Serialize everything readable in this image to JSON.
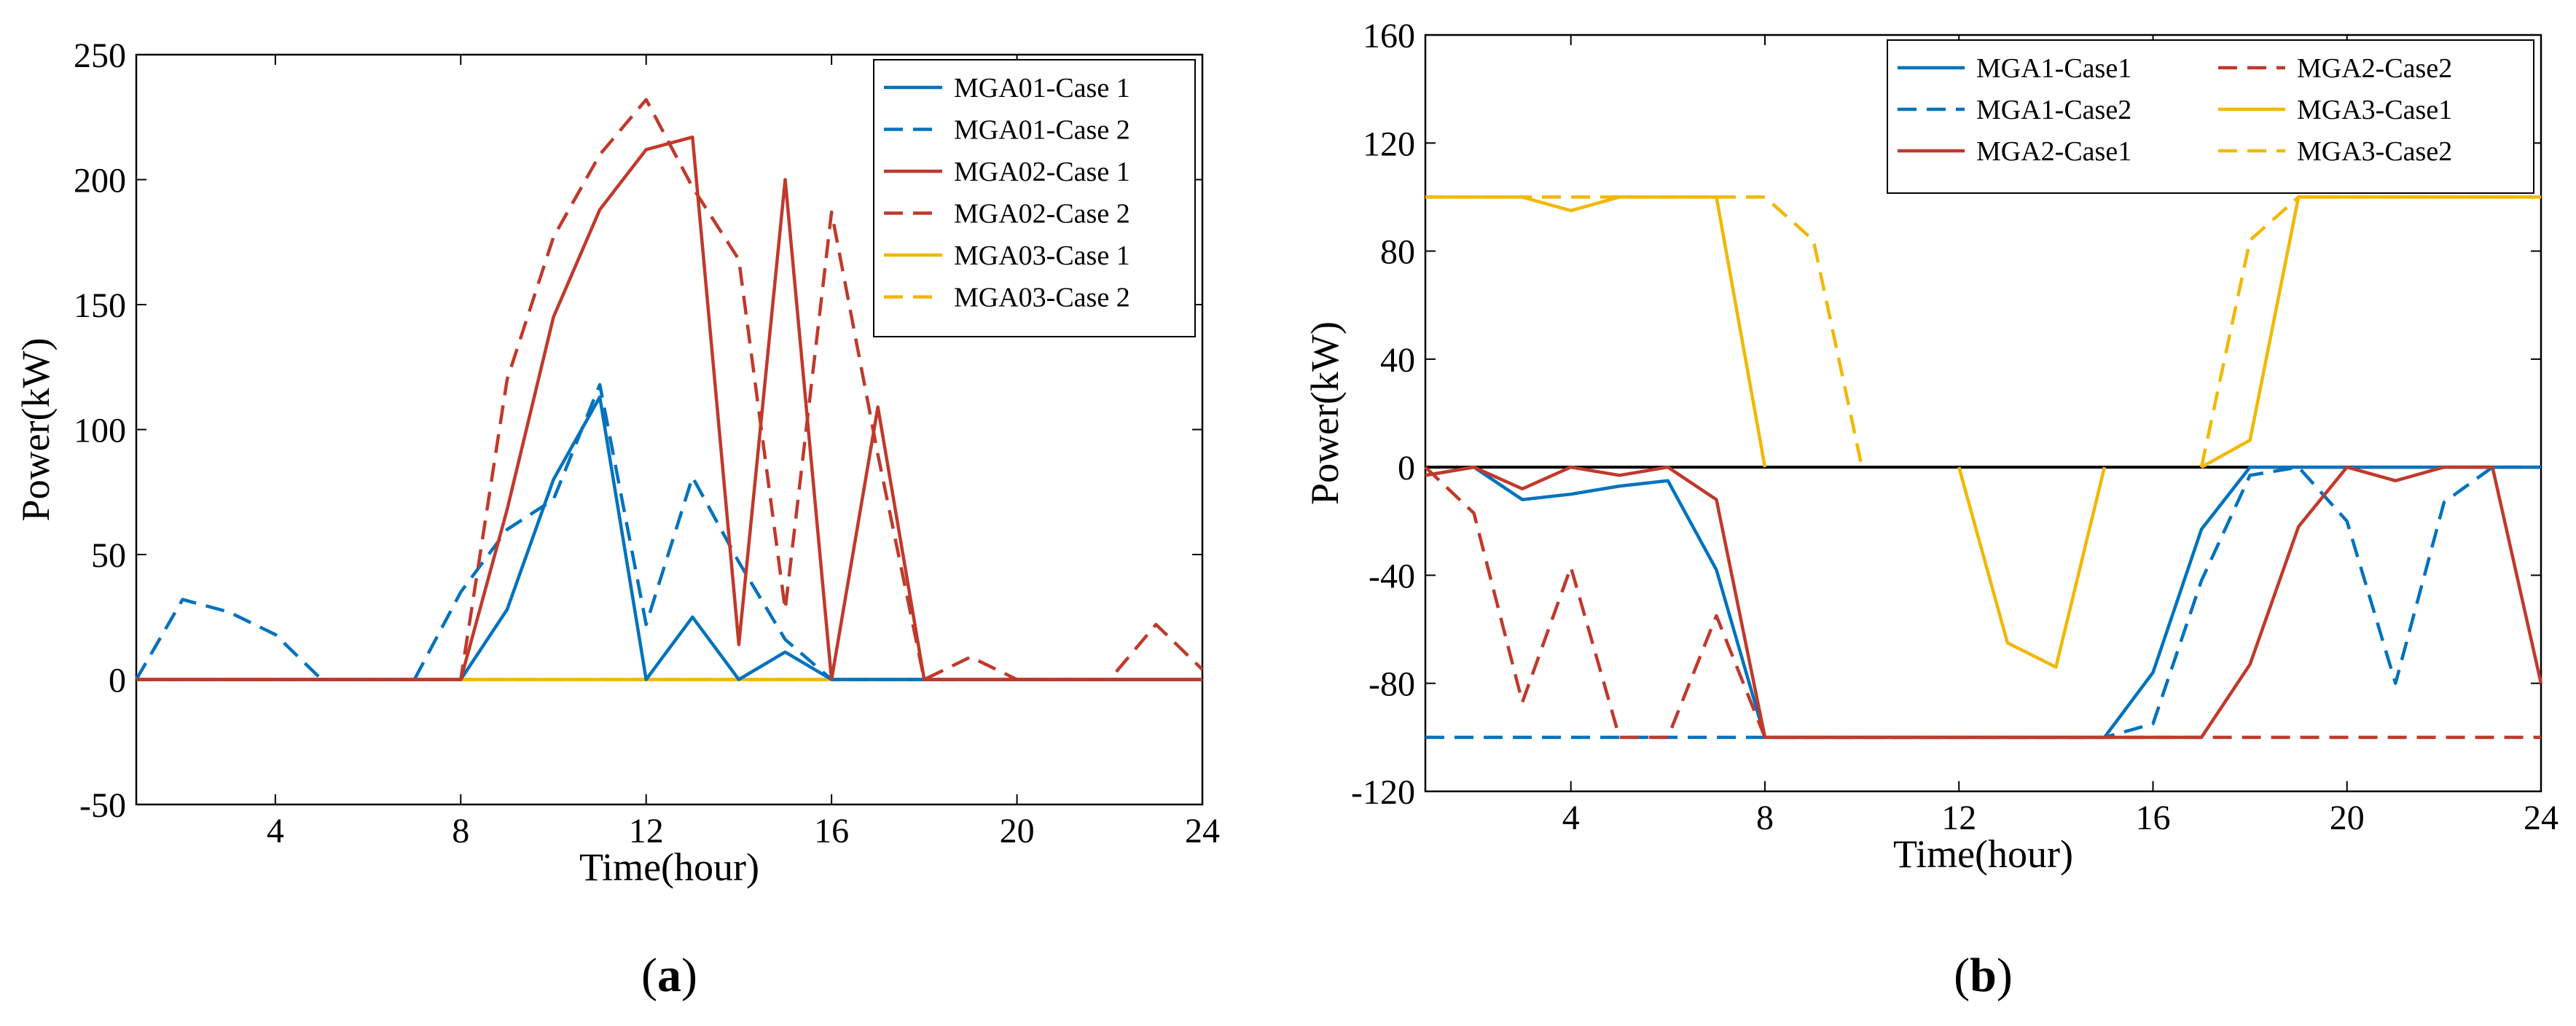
{
  "chart_data": [
    {
      "type": "line",
      "panel": "(a)",
      "panel_letter": "a",
      "xlabel": "Time(hour)",
      "ylabel": "Power(kW)",
      "xlim": [
        1,
        24
      ],
      "ylim": [
        -50,
        250
      ],
      "xticks": [
        4,
        8,
        12,
        16,
        20,
        24
      ],
      "yticks": [
        -50,
        0,
        50,
        100,
        150,
        200,
        250
      ],
      "legend_position": "top-right",
      "series": [
        {
          "name": "MGA01-Case 1",
          "color": "#0072BD",
          "dash": "solid",
          "x": [
            1,
            2,
            3,
            4,
            5,
            6,
            7,
            8,
            9,
            10,
            11,
            12,
            13,
            14,
            15,
            16,
            17,
            18,
            19,
            20,
            21,
            22,
            23,
            24
          ],
          "values": [
            0,
            0,
            0,
            0,
            0,
            0,
            0,
            0,
            28,
            80,
            113,
            0,
            25,
            0,
            11,
            0,
            0,
            0,
            0,
            0,
            0,
            0,
            0,
            0
          ]
        },
        {
          "name": "MGA01-Case 2",
          "color": "#0072BD",
          "dash": "dashed",
          "x": [
            1,
            2,
            3,
            4,
            5,
            6,
            7,
            8,
            9,
            10,
            11,
            12,
            13,
            14,
            15,
            16,
            17,
            18,
            19,
            20,
            21,
            22,
            23,
            24
          ],
          "values": [
            0,
            32,
            27,
            18,
            0,
            0,
            0,
            35,
            60,
            72,
            118,
            22,
            81,
            47,
            16,
            0,
            0,
            0,
            0,
            0,
            0,
            0,
            0,
            0
          ]
        },
        {
          "name": "MGA02-Case 1",
          "color": "#C0392B",
          "dash": "solid",
          "x": [
            1,
            2,
            3,
            4,
            5,
            6,
            7,
            8,
            9,
            10,
            11,
            12,
            13,
            14,
            15,
            16,
            17,
            18,
            19,
            20,
            21,
            22,
            23,
            24
          ],
          "values": [
            0,
            0,
            0,
            0,
            0,
            0,
            0,
            0,
            68,
            145,
            188,
            212,
            217,
            14,
            200,
            0,
            109,
            0,
            0,
            0,
            0,
            0,
            0,
            0
          ]
        },
        {
          "name": "MGA02-Case 2",
          "color": "#C0392B",
          "dash": "dashed",
          "x": [
            1,
            2,
            3,
            4,
            5,
            6,
            7,
            8,
            9,
            10,
            11,
            12,
            13,
            14,
            15,
            16,
            17,
            18,
            19,
            20,
            21,
            22,
            23,
            24
          ],
          "values": [
            0,
            0,
            0,
            0,
            0,
            0,
            0,
            0,
            120,
            177,
            210,
            232,
            197,
            168,
            28,
            187,
            90,
            0,
            9,
            0,
            0,
            0,
            22,
            4
          ]
        },
        {
          "name": "MGA03-Case 1",
          "color": "#F2B705",
          "dash": "solid",
          "x": [
            1,
            2,
            3,
            4,
            5,
            6,
            7,
            8,
            9,
            10,
            11,
            12,
            13,
            14,
            15,
            16,
            17,
            18,
            19,
            20,
            21,
            22,
            23,
            24
          ],
          "values": [
            0,
            0,
            0,
            0,
            0,
            0,
            0,
            0,
            0,
            0,
            0,
            0,
            0,
            0,
            0,
            0,
            0,
            0,
            0,
            0,
            0,
            0,
            0,
            0
          ]
        },
        {
          "name": "MGA03-Case 2",
          "color": "#F2B705",
          "dash": "dashed",
          "x": [
            1,
            2,
            3,
            4,
            5,
            6,
            7,
            8,
            9,
            10,
            11,
            12,
            13,
            14,
            15,
            16,
            17,
            18,
            19,
            20,
            21,
            22,
            23,
            24
          ],
          "values": [
            0,
            0,
            0,
            0,
            0,
            0,
            0,
            0,
            0,
            0,
            0,
            0,
            0,
            0,
            0,
            0,
            0,
            0,
            0,
            0,
            0,
            0,
            0,
            0
          ]
        }
      ]
    },
    {
      "type": "line",
      "panel": "(b)",
      "panel_letter": "b",
      "xlabel": "Time(hour)",
      "ylabel": "Power(kW)",
      "xlim": [
        1,
        24
      ],
      "ylim": [
        -120,
        160
      ],
      "xticks": [
        4,
        8,
        12,
        16,
        20,
        24
      ],
      "yticks": [
        -120,
        -80,
        -40,
        0,
        40,
        80,
        120,
        160
      ],
      "zero_line": true,
      "legend_position": "top-right",
      "series": [
        {
          "name": "MGA1-Case1",
          "color": "#0072BD",
          "dash": "solid",
          "x": [
            1,
            2,
            3,
            4,
            5,
            6,
            7,
            8,
            9,
            10,
            11,
            12,
            13,
            14,
            15,
            16,
            17,
            18,
            19,
            20,
            21,
            22,
            23,
            24
          ],
          "values": [
            -3,
            0,
            -12,
            -10,
            -7,
            -5,
            -38,
            -100,
            -100,
            -100,
            -100,
            -100,
            -100,
            -100,
            -100,
            -76,
            -23,
            0,
            0,
            0,
            0,
            0,
            0,
            0
          ]
        },
        {
          "name": "MGA1-Case2",
          "color": "#0072BD",
          "dash": "dashed",
          "x": [
            1,
            2,
            3,
            4,
            5,
            6,
            7,
            8,
            9,
            10,
            11,
            12,
            13,
            14,
            15,
            16,
            17,
            18,
            19,
            20,
            21,
            22,
            23,
            24
          ],
          "values": [
            -100,
            -100,
            -100,
            -100,
            -100,
            -100,
            -100,
            -100,
            -100,
            -100,
            -100,
            -100,
            -100,
            -100,
            -100,
            -95,
            -42,
            -3,
            0,
            -20,
            -80,
            -13,
            0,
            0
          ]
        },
        {
          "name": "MGA2-Case1",
          "color": "#C0392B",
          "dash": "solid",
          "x": [
            1,
            2,
            3,
            4,
            5,
            6,
            7,
            8,
            9,
            10,
            11,
            12,
            13,
            14,
            15,
            16,
            17,
            18,
            19,
            20,
            21,
            22,
            23,
            24
          ],
          "values": [
            -3,
            0,
            -8,
            0,
            -3,
            0,
            -12,
            -100,
            -100,
            -100,
            -100,
            -100,
            -100,
            -100,
            -100,
            -100,
            -100,
            -73,
            -22,
            0,
            -5,
            0,
            0,
            -80
          ]
        },
        {
          "name": "MGA2-Case2",
          "color": "#C0392B",
          "dash": "dashed",
          "x": [
            1,
            2,
            3,
            4,
            5,
            6,
            7,
            8,
            9,
            10,
            11,
            12,
            13,
            14,
            15,
            16,
            17,
            18,
            19,
            20,
            21,
            22,
            23,
            24
          ],
          "values": [
            0,
            -17,
            -87,
            -37,
            -100,
            -100,
            -55,
            -100,
            -100,
            -100,
            -100,
            -100,
            -100,
            -100,
            -100,
            -100,
            -100,
            -100,
            -100,
            -100,
            -100,
            -100,
            -100,
            -100
          ]
        },
        {
          "name": "MGA3-Case1",
          "color": "#F2B705",
          "dash": "solid",
          "x": [
            1,
            2,
            3,
            4,
            5,
            6,
            7,
            8,
            9,
            10,
            11,
            12,
            13,
            14,
            15,
            16,
            17,
            18,
            19,
            20,
            21,
            22,
            23,
            24
          ],
          "values": [
            100,
            100,
            100,
            95,
            100,
            100,
            100,
            0,
            null,
            null,
            null,
            0,
            -65,
            -74,
            0,
            null,
            0,
            10,
            100,
            100,
            100,
            100,
            100,
            100
          ]
        },
        {
          "name": "MGA3-Case2",
          "color": "#F2B705",
          "dash": "dashed",
          "x": [
            1,
            2,
            3,
            4,
            5,
            6,
            7,
            8,
            9,
            10,
            11,
            12,
            13,
            14,
            15,
            16,
            17,
            18,
            19,
            20,
            21,
            22,
            23,
            24
          ],
          "values": [
            100,
            100,
            100,
            100,
            100,
            100,
            100,
            100,
            84,
            0,
            null,
            null,
            null,
            null,
            null,
            null,
            0,
            84,
            100,
            100,
            100,
            100,
            100,
            100
          ]
        }
      ]
    }
  ]
}
